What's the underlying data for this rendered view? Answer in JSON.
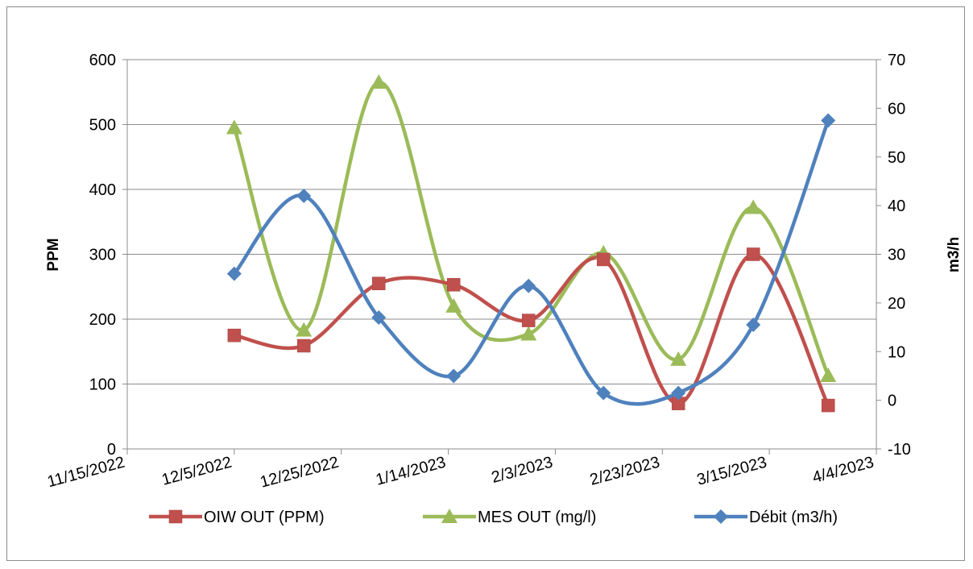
{
  "chart_data": {
    "type": "line",
    "title": "",
    "ylabel_left": "PPM",
    "ylabel_right": "m3/h",
    "ylim_left": [
      0,
      600
    ],
    "yticks_left": [
      0,
      100,
      200,
      300,
      400,
      500,
      600
    ],
    "ylim_right": [
      -10,
      70
    ],
    "yticks_right": [
      -10,
      0,
      10,
      20,
      30,
      40,
      50,
      60,
      70
    ],
    "xlim": [
      "2022-11-15",
      "2023-04-04"
    ],
    "xticks": [
      "11/15/2022",
      "12/5/2022",
      "12/25/2022",
      "1/14/2023",
      "2/3/2023",
      "2/23/2023",
      "3/15/2023",
      "4/4/2023"
    ],
    "grid": "horizontal",
    "legend_position": "bottom",
    "series": [
      {
        "name": "OIW OUT (PPM)",
        "axis": "left",
        "color": "#c0504d",
        "marker": "square",
        "x": [
          "2022-12-05",
          "2022-12-18",
          "2023-01-01",
          "2023-01-15",
          "2023-01-29",
          "2023-02-12",
          "2023-02-26",
          "2023-03-12",
          "2023-03-26"
        ],
        "y": [
          175,
          159,
          255,
          253,
          198,
          292,
          70,
          300,
          67
        ]
      },
      {
        "name": "MES OUT (mg/l)",
        "axis": "left",
        "color": "#9bbb59",
        "marker": "triangle",
        "x": [
          "2022-12-05",
          "2022-12-18",
          "2023-01-01",
          "2023-01-15",
          "2023-01-29",
          "2023-02-12",
          "2023-02-26",
          "2023-03-12",
          "2023-03-26"
        ],
        "y": [
          495,
          183,
          565,
          220,
          177,
          302,
          138,
          372,
          113
        ]
      },
      {
        "name": "Débit (m3/h)",
        "axis": "right",
        "color": "#4f81bd",
        "marker": "diamond",
        "x": [
          "2022-12-05",
          "2022-12-18",
          "2023-01-01",
          "2023-01-15",
          "2023-01-29",
          "2023-02-12",
          "2023-02-26",
          "2023-03-12",
          "2023-03-26"
        ],
        "y": [
          26,
          42,
          17,
          5,
          23.5,
          1.5,
          1.5,
          15.5,
          57.5
        ]
      }
    ]
  }
}
